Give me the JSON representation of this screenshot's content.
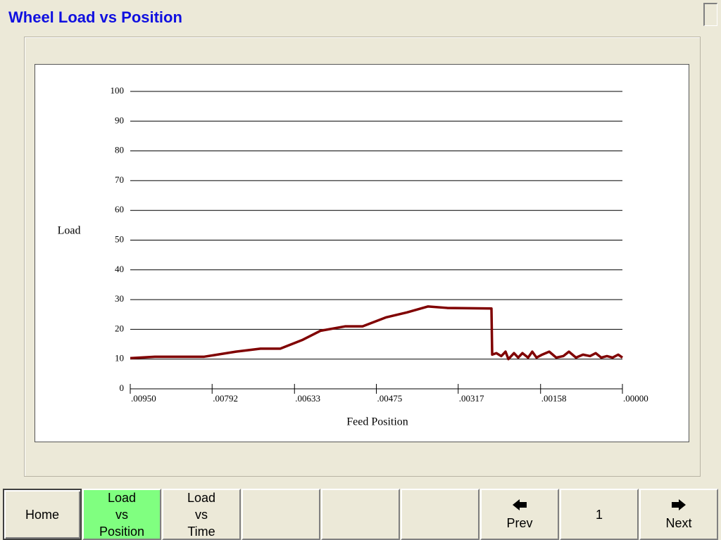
{
  "header": {
    "title": "Wheel Load vs Position"
  },
  "chart_data": {
    "type": "line",
    "x_label": "Feed Position",
    "y_label": "Load",
    "x": [
      0.0095,
      0.009024,
      0.008073,
      0.007461,
      0.006986,
      0.006605,
      0.00617,
      0.005831,
      0.005355,
      0.005015,
      0.004567,
      0.004159,
      0.003751,
      0.003384,
      0.002528,
      0.002514,
      0.002433,
      0.002338,
      0.002256,
      0.002201,
      0.002093,
      0.002012,
      0.00193,
      0.001821,
      0.00174,
      0.001658,
      0.001549,
      0.001413,
      0.001278,
      0.001142,
      0.001033,
      0.000897,
      0.000761,
      0.000625,
      0.000516,
      0.000408,
      0.000299,
      0.00019,
      8.2e-05,
      0
    ],
    "series": [
      {
        "name": "Load",
        "color": "#800000",
        "values": [
          10.3,
          10.8,
          10.8,
          12.5,
          13.5,
          13.5,
          16.5,
          19.5,
          21,
          21,
          24,
          25.7,
          27.7,
          27.2,
          27,
          11.5,
          12,
          11,
          12.5,
          10,
          12,
          10.5,
          12,
          10.5,
          12.5,
          10.5,
          11.5,
          12.5,
          10.5,
          11,
          12.5,
          10.5,
          11.5,
          11,
          12,
          10.5,
          11,
          10.5,
          11.5,
          10.5
        ]
      }
    ],
    "xlim": [
      0.0095,
      0
    ],
    "xticks": [
      {
        "value": 0.0095,
        "label": ".00950"
      },
      {
        "value": 0.00792,
        "label": ".00792"
      },
      {
        "value": 0.00633,
        "label": ".00633"
      },
      {
        "value": 0.00475,
        "label": ".00475"
      },
      {
        "value": 0.00317,
        "label": ".00317"
      },
      {
        "value": 0.00158,
        "label": ".00158"
      },
      {
        "value": 0,
        "label": ".00000"
      }
    ],
    "ylim": [
      0,
      100
    ],
    "yticks": [
      0,
      10,
      20,
      30,
      40,
      50,
      60,
      70,
      80,
      90,
      100
    ],
    "grid": true
  },
  "buttons": {
    "home": "Home",
    "load_position": [
      "Load",
      "vs",
      "Position"
    ],
    "load_time": [
      "Load",
      "vs",
      "Time"
    ],
    "prev": "Prev",
    "page": "1",
    "next": "Next"
  }
}
